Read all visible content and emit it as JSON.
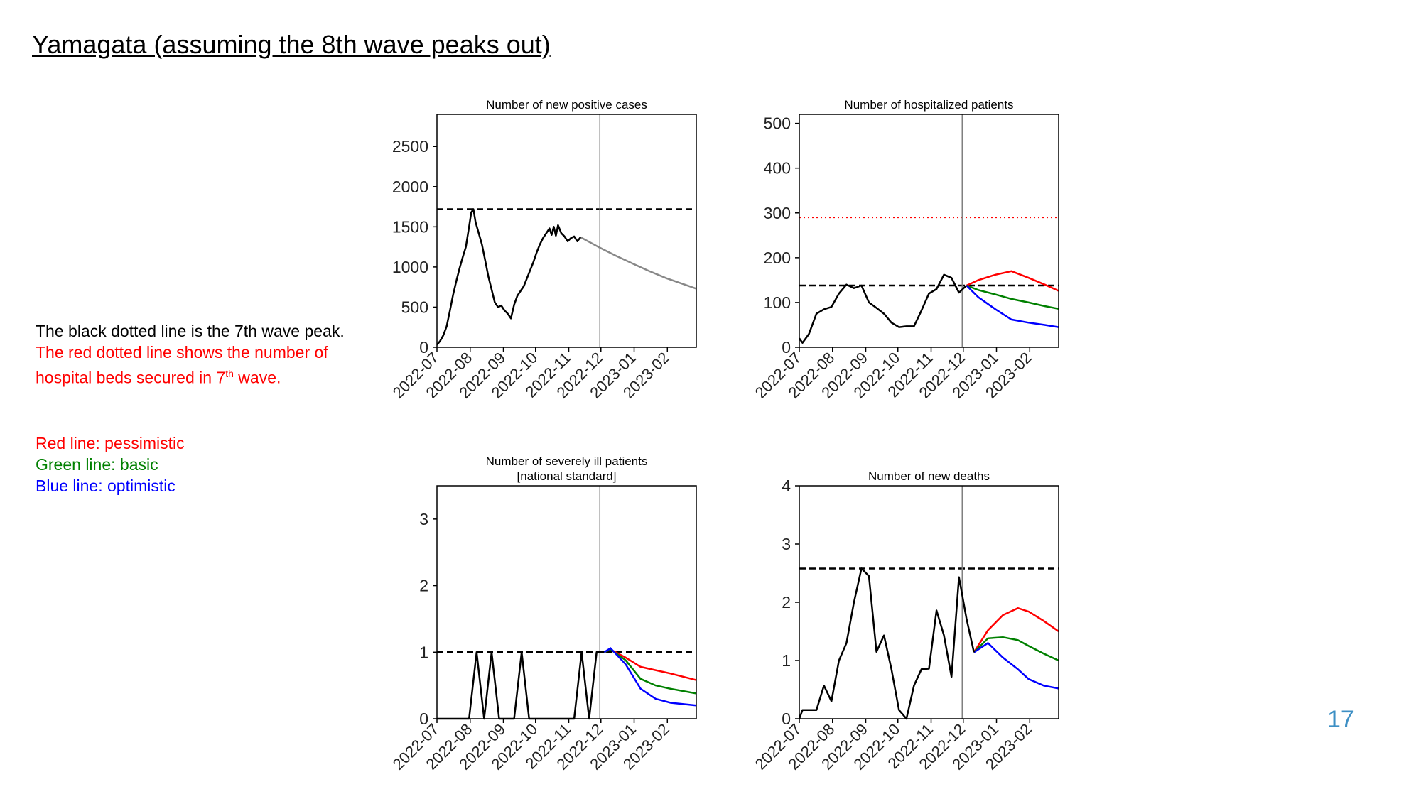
{
  "slide": {
    "title": "Yamagata (assuming the 8th wave peaks out)",
    "page_number": "17"
  },
  "notes": {
    "line1": "The black dotted line is the 7th wave peak.",
    "line2_a": "The red dotted line shows the number of",
    "line3_a": "hospital beds secured in 7",
    "line3_sup": "th",
    "line3_b": " wave."
  },
  "legend": {
    "red": "Red line: pessimistic",
    "green": "Green line: basic",
    "blue": "Blue line: optimistic"
  },
  "colors": {
    "observed": "#000000",
    "projection_single": "#888888",
    "pessimistic": "#ff0000",
    "basic": "#008000",
    "optimistic": "#0000ff",
    "beds_line": "#ff0000",
    "divider": "#808080",
    "page_number": "#3d8fc4"
  },
  "chart_data": [
    {
      "id": "cases",
      "type": "line",
      "title": [
        "Number of new positive cases"
      ],
      "x_ticks": [
        "2022-07",
        "2022-08",
        "2022-09",
        "2022-10",
        "2022-11",
        "2022-12",
        "2023-01",
        "2023-02"
      ],
      "x_range": [
        "2022-07-01",
        "2023-02-28"
      ],
      "y_range": [
        0,
        2900
      ],
      "y_ticks": [
        "0",
        "500",
        "1000",
        "1500",
        "2000",
        "2500"
      ],
      "reference_lines": {
        "seventh_wave_peak": 1720
      },
      "divider_date": "2022-11-30",
      "observed": [
        [
          "2022-07-01",
          30
        ],
        [
          "2022-07-04",
          80
        ],
        [
          "2022-07-07",
          150
        ],
        [
          "2022-07-10",
          260
        ],
        [
          "2022-07-13",
          450
        ],
        [
          "2022-07-16",
          650
        ],
        [
          "2022-07-19",
          820
        ],
        [
          "2022-07-22",
          980
        ],
        [
          "2022-07-25",
          1120
        ],
        [
          "2022-07-28",
          1250
        ],
        [
          "2022-07-31",
          1500
        ],
        [
          "2022-08-02",
          1680
        ],
        [
          "2022-08-04",
          1720
        ],
        [
          "2022-08-06",
          1560
        ],
        [
          "2022-08-09",
          1420
        ],
        [
          "2022-08-12",
          1280
        ],
        [
          "2022-08-15",
          1080
        ],
        [
          "2022-08-18",
          880
        ],
        [
          "2022-08-21",
          720
        ],
        [
          "2022-08-24",
          560
        ],
        [
          "2022-08-27",
          500
        ],
        [
          "2022-08-30",
          520
        ],
        [
          "2022-09-02",
          460
        ],
        [
          "2022-09-05",
          420
        ],
        [
          "2022-09-08",
          360
        ],
        [
          "2022-09-11",
          530
        ],
        [
          "2022-09-14",
          640
        ],
        [
          "2022-09-17",
          700
        ],
        [
          "2022-09-20",
          760
        ],
        [
          "2022-09-23",
          860
        ],
        [
          "2022-09-26",
          960
        ],
        [
          "2022-09-29",
          1060
        ],
        [
          "2022-10-02",
          1180
        ],
        [
          "2022-10-05",
          1280
        ],
        [
          "2022-10-08",
          1360
        ],
        [
          "2022-10-11",
          1420
        ],
        [
          "2022-10-14",
          1480
        ],
        [
          "2022-10-16",
          1400
        ],
        [
          "2022-10-18",
          1500
        ],
        [
          "2022-10-20",
          1390
        ],
        [
          "2022-10-22",
          1520
        ],
        [
          "2022-10-25",
          1420
        ],
        [
          "2022-10-28",
          1380
        ],
        [
          "2022-10-31",
          1320
        ],
        [
          "2022-11-03",
          1360
        ],
        [
          "2022-11-06",
          1380
        ],
        [
          "2022-11-09",
          1320
        ],
        [
          "2022-11-12",
          1370
        ]
      ],
      "projection": [
        [
          "2022-11-12",
          1370
        ],
        [
          "2022-11-30",
          1240
        ],
        [
          "2022-12-15",
          1140
        ],
        [
          "2022-12-31",
          1040
        ],
        [
          "2023-01-15",
          950
        ],
        [
          "2023-01-31",
          860
        ],
        [
          "2023-02-15",
          790
        ],
        [
          "2023-02-28",
          730
        ]
      ]
    },
    {
      "id": "hospitalized",
      "type": "line",
      "title": [
        "Number of hospitalized patients"
      ],
      "x_ticks": [
        "2022-07",
        "2022-08",
        "2022-09",
        "2022-10",
        "2022-11",
        "2022-12",
        "2023-01",
        "2023-02"
      ],
      "x_range": [
        "2022-07-01",
        "2023-02-28"
      ],
      "y_range": [
        0,
        520
      ],
      "y_ticks": [
        "0",
        "100",
        "200",
        "300",
        "400",
        "500"
      ],
      "reference_lines": {
        "seventh_wave_peak": 138,
        "beds_secured_7th_wave": 290
      },
      "divider_date": "2022-11-30",
      "observed": [
        [
          "2022-07-01",
          20
        ],
        [
          "2022-07-04",
          10
        ],
        [
          "2022-07-10",
          30
        ],
        [
          "2022-07-17",
          75
        ],
        [
          "2022-07-24",
          85
        ],
        [
          "2022-07-31",
          90
        ],
        [
          "2022-08-07",
          120
        ],
        [
          "2022-08-14",
          140
        ],
        [
          "2022-08-21",
          132
        ],
        [
          "2022-08-28",
          138
        ],
        [
          "2022-09-04",
          100
        ],
        [
          "2022-09-11",
          88
        ],
        [
          "2022-09-18",
          75
        ],
        [
          "2022-09-25",
          55
        ],
        [
          "2022-10-02",
          45
        ],
        [
          "2022-10-09",
          47
        ],
        [
          "2022-10-16",
          47
        ],
        [
          "2022-10-23",
          82
        ],
        [
          "2022-10-30",
          120
        ],
        [
          "2022-11-06",
          130
        ],
        [
          "2022-11-13",
          162
        ],
        [
          "2022-11-20",
          155
        ],
        [
          "2022-11-27",
          122
        ],
        [
          "2022-12-04",
          138
        ]
      ],
      "series": [
        {
          "name": "pessimistic",
          "points": [
            [
              "2022-12-04",
              138
            ],
            [
              "2022-12-15",
              150
            ],
            [
              "2022-12-31",
              162
            ],
            [
              "2023-01-15",
              170
            ],
            [
              "2023-01-31",
              155
            ],
            [
              "2023-02-15",
              140
            ],
            [
              "2023-02-28",
              126
            ]
          ]
        },
        {
          "name": "basic",
          "points": [
            [
              "2022-12-04",
              138
            ],
            [
              "2022-12-15",
              128
            ],
            [
              "2022-12-31",
              118
            ],
            [
              "2023-01-15",
              108
            ],
            [
              "2023-01-31",
              100
            ],
            [
              "2023-02-15",
              92
            ],
            [
              "2023-02-28",
              86
            ]
          ]
        },
        {
          "name": "optimistic",
          "points": [
            [
              "2022-12-04",
              138
            ],
            [
              "2022-12-15",
              112
            ],
            [
              "2022-12-31",
              85
            ],
            [
              "2023-01-15",
              62
            ],
            [
              "2023-01-31",
              55
            ],
            [
              "2023-02-15",
              50
            ],
            [
              "2023-02-28",
              45
            ]
          ]
        }
      ]
    },
    {
      "id": "severe",
      "type": "line",
      "title": [
        "Number of severely ill patients",
        "[national standard]"
      ],
      "x_ticks": [
        "2022-07",
        "2022-08",
        "2022-09",
        "2022-10",
        "2022-11",
        "2022-12",
        "2023-01",
        "2023-02"
      ],
      "x_range": [
        "2022-07-01",
        "2023-02-28"
      ],
      "y_range": [
        0,
        3.5
      ],
      "y_ticks": [
        "0",
        "1",
        "2",
        "3"
      ],
      "reference_lines": {
        "seventh_wave_peak": 1
      },
      "divider_date": "2022-11-30",
      "observed": [
        [
          "2022-07-01",
          0
        ],
        [
          "2022-07-31",
          0
        ],
        [
          "2022-08-07",
          1
        ],
        [
          "2022-08-14",
          0
        ],
        [
          "2022-08-21",
          1
        ],
        [
          "2022-08-28",
          0
        ],
        [
          "2022-09-11",
          0
        ],
        [
          "2022-09-18",
          1
        ],
        [
          "2022-09-25",
          0
        ],
        [
          "2022-11-06",
          0
        ],
        [
          "2022-11-13",
          1
        ],
        [
          "2022-11-20",
          0
        ],
        [
          "2022-11-27",
          1
        ],
        [
          "2022-12-04",
          1
        ]
      ],
      "series": [
        {
          "name": "pessimistic",
          "points": [
            [
              "2022-12-04",
              1
            ],
            [
              "2022-12-10",
              1.04
            ],
            [
              "2022-12-24",
              0.92
            ],
            [
              "2023-01-07",
              0.78
            ],
            [
              "2023-01-21",
              0.73
            ],
            [
              "2023-02-04",
              0.68
            ],
            [
              "2023-02-28",
              0.58
            ]
          ]
        },
        {
          "name": "basic",
          "points": [
            [
              "2022-12-04",
              1
            ],
            [
              "2022-12-10",
              1.04
            ],
            [
              "2022-12-24",
              0.88
            ],
            [
              "2023-01-07",
              0.6
            ],
            [
              "2023-01-21",
              0.5
            ],
            [
              "2023-02-04",
              0.45
            ],
            [
              "2023-02-28",
              0.38
            ]
          ]
        },
        {
          "name": "optimistic",
          "points": [
            [
              "2022-12-04",
              1
            ],
            [
              "2022-12-10",
              1.06
            ],
            [
              "2022-12-24",
              0.82
            ],
            [
              "2023-01-07",
              0.45
            ],
            [
              "2023-01-21",
              0.3
            ],
            [
              "2023-02-04",
              0.24
            ],
            [
              "2023-02-28",
              0.2
            ]
          ]
        }
      ]
    },
    {
      "id": "deaths",
      "type": "line",
      "title": [
        "Number of new deaths"
      ],
      "x_ticks": [
        "2022-07",
        "2022-08",
        "2022-09",
        "2022-10",
        "2022-11",
        "2022-12",
        "2023-01",
        "2023-02"
      ],
      "x_range": [
        "2022-07-01",
        "2023-02-28"
      ],
      "y_range": [
        0,
        4
      ],
      "y_ticks": [
        "0",
        "1",
        "2",
        "3",
        "4"
      ],
      "reference_lines": {
        "seventh_wave_peak": 2.58
      },
      "divider_date": "2022-11-30",
      "observed": [
        [
          "2022-07-01",
          0
        ],
        [
          "2022-07-04",
          0.15
        ],
        [
          "2022-07-17",
          0.15
        ],
        [
          "2022-07-24",
          0.57
        ],
        [
          "2022-07-31",
          0.3
        ],
        [
          "2022-08-07",
          1.0
        ],
        [
          "2022-08-14",
          1.3
        ],
        [
          "2022-08-21",
          2.0
        ],
        [
          "2022-08-28",
          2.58
        ],
        [
          "2022-09-04",
          2.45
        ],
        [
          "2022-09-11",
          1.15
        ],
        [
          "2022-09-18",
          1.43
        ],
        [
          "2022-09-25",
          0.85
        ],
        [
          "2022-10-02",
          0.15
        ],
        [
          "2022-10-09",
          0
        ],
        [
          "2022-10-16",
          0.57
        ],
        [
          "2022-10-23",
          0.85
        ],
        [
          "2022-10-30",
          0.86
        ],
        [
          "2022-11-06",
          1.86
        ],
        [
          "2022-11-13",
          1.43
        ],
        [
          "2022-11-20",
          0.72
        ],
        [
          "2022-11-27",
          2.43
        ],
        [
          "2022-12-04",
          1.72
        ],
        [
          "2022-12-11",
          1.14
        ]
      ],
      "series": [
        {
          "name": "pessimistic",
          "points": [
            [
              "2022-12-11",
              1.14
            ],
            [
              "2022-12-24",
              1.52
            ],
            [
              "2023-01-07",
              1.78
            ],
            [
              "2023-01-21",
              1.9
            ],
            [
              "2023-01-31",
              1.84
            ],
            [
              "2023-02-14",
              1.68
            ],
            [
              "2023-02-28",
              1.5
            ]
          ]
        },
        {
          "name": "basic",
          "points": [
            [
              "2022-12-11",
              1.14
            ],
            [
              "2022-12-24",
              1.38
            ],
            [
              "2023-01-07",
              1.4
            ],
            [
              "2023-01-21",
              1.35
            ],
            [
              "2023-01-31",
              1.25
            ],
            [
              "2023-02-14",
              1.12
            ],
            [
              "2023-02-28",
              1.0
            ]
          ]
        },
        {
          "name": "optimistic",
          "points": [
            [
              "2022-12-11",
              1.14
            ],
            [
              "2022-12-24",
              1.3
            ],
            [
              "2023-01-07",
              1.05
            ],
            [
              "2023-01-21",
              0.85
            ],
            [
              "2023-01-31",
              0.68
            ],
            [
              "2023-02-14",
              0.57
            ],
            [
              "2023-02-28",
              0.52
            ]
          ]
        }
      ]
    }
  ]
}
